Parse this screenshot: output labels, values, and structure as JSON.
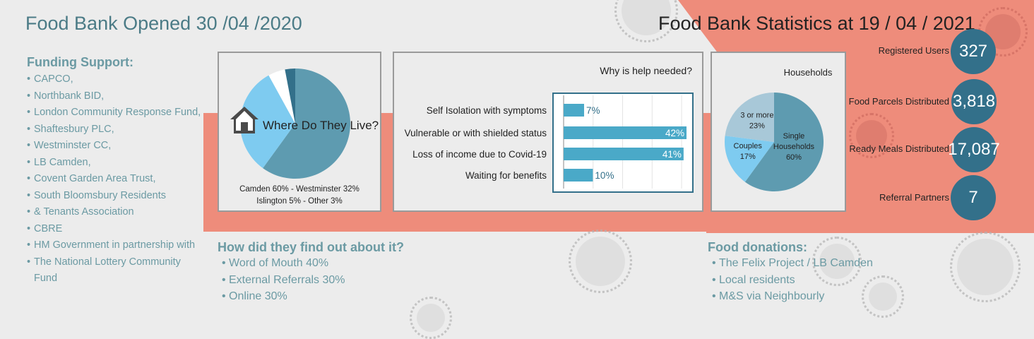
{
  "header": {
    "left_title": "Food Bank Opened 30 /04 /2020",
    "right_title": "Food Bank Statistics at 19 / 04 / 2021"
  },
  "funding": {
    "heading": "Funding Support:",
    "items": [
      "CAPCO,",
      "Northbank BID,",
      "London Community Response Fund,",
      "Shaftesbury PLC,",
      "Westminster CC,",
      "LB Camden,",
      "Covent Garden Area Trust,",
      "South Bloomsbury Residents",
      "CBRE",
      "HM Government in partnership with"
    ],
    "continuations": {
      "south_bloomsbury": "& Tenants Association",
      "hm_government": "The National Lottery Community Fund"
    }
  },
  "find_out": {
    "heading": "How did they find out about it?",
    "items": [
      "Word of Mouth 40%",
      "External Referrals 30%",
      "Online 30%"
    ]
  },
  "donations": {
    "heading": "Food donations:",
    "items": [
      "The Felix Project / LB Camden",
      "Local residents",
      "M&S via Neighbourly"
    ]
  },
  "stats": [
    {
      "label": "Registered Users",
      "value": "327"
    },
    {
      "label": "Food Parcels Distributed",
      "value": "3,818"
    },
    {
      "label": "Ready Meals Distributed",
      "value": "17,087"
    },
    {
      "label": "Referral Partners",
      "value": "7"
    }
  ],
  "icons": {
    "house": "house-icon",
    "virus": "virus-icon"
  },
  "colors": {
    "salmon": "#ee8c7b",
    "teal_dark": "#33708a",
    "pie_camden": "#5e9bb0",
    "pie_westminster": "#7ecbf0",
    "pie_islington": "#ffffff",
    "pie_other": "#33708a",
    "bar": "#4aa9c8",
    "hh_single": "#5e9bb0",
    "hh_couples": "#7ecbf0",
    "hh_3more": "#a8c8d8"
  },
  "chart_data": [
    {
      "type": "pie",
      "title": "Where Do They Live?",
      "labels": [
        "Camden",
        "Westminster",
        "Islington",
        "Other"
      ],
      "values": [
        60,
        32,
        5,
        3
      ],
      "caption_line1": "Camden 60% - Westminster 32%",
      "caption_line2": "Islington 5% - Other 3%"
    },
    {
      "type": "bar",
      "title": "Why is help needed?",
      "categories": [
        "Self Isolation with symptoms",
        "Vulnerable or with shielded status",
        "Loss of income due to Covid-19",
        "Waiting for benefits"
      ],
      "values": [
        7,
        42,
        41,
        10
      ],
      "value_labels": [
        "7%",
        "42%",
        "41%",
        "10%"
      ],
      "xlim": [
        0,
        100
      ]
    },
    {
      "type": "pie",
      "title": "Households",
      "labels": [
        "Single Households",
        "Couples",
        "3 or more"
      ],
      "values": [
        60,
        17,
        23
      ],
      "slice_labels": [
        {
          "line1": "Single",
          "line2": "Households",
          "line3": "60%"
        },
        {
          "line1": "Couples",
          "line2": "17%"
        },
        {
          "line1": "3 or more",
          "line2": "23%"
        }
      ]
    }
  ]
}
